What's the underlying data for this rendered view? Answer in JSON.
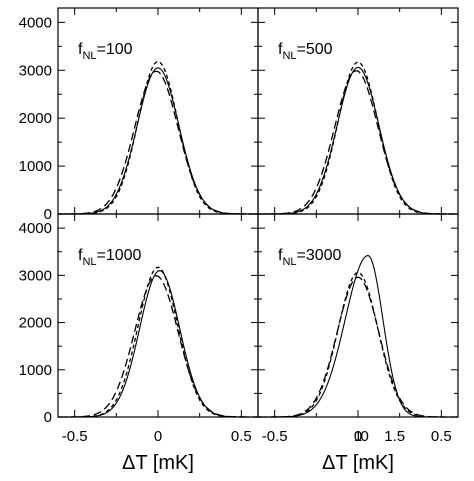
{
  "chart_data": [
    {
      "type": "line",
      "panel": "top-left",
      "label_main": "f",
      "label_sub": "NL",
      "label_value": "=100",
      "xlim": [
        -0.6,
        0.6
      ],
      "ylim": [
        0,
        4300
      ],
      "x_ticks": [
        -0.5,
        0,
        0.5
      ],
      "x_tick_labels": [
        "",
        "",
        ""
      ],
      "y_ticks": [
        0,
        1000,
        2000,
        3000,
        4000
      ],
      "y_tick_labels": [
        "0",
        "1000",
        "2000",
        "3000",
        "4000"
      ],
      "series": [
        {
          "style": "solid",
          "values": {
            "mean": 0.0,
            "sigma": 0.125,
            "peak": 3050
          }
        },
        {
          "style": "dashed",
          "values": {
            "mean": 0.0,
            "sigma": 0.12,
            "peak": 3180
          }
        },
        {
          "style": "long-dashed",
          "values": {
            "mean": -0.01,
            "sigma": 0.13,
            "peak": 2980
          }
        }
      ]
    },
    {
      "type": "line",
      "panel": "top-right",
      "label_main": "f",
      "label_sub": "NL",
      "label_value": "=500",
      "xlim": [
        -0.6,
        0.6
      ],
      "ylim": [
        0,
        4300
      ],
      "x_ticks": [
        -0.5,
        0,
        0.5
      ],
      "x_tick_labels": [
        "",
        "",
        ""
      ],
      "y_ticks": [
        0,
        1000,
        2000,
        3000,
        4000
      ],
      "y_tick_labels": [
        "",
        "",
        "",
        "",
        ""
      ],
      "series": [
        {
          "style": "solid",
          "values": {
            "mean": 0.0,
            "sigma": 0.125,
            "peak": 3060
          }
        },
        {
          "style": "dashed",
          "values": {
            "mean": 0.0,
            "sigma": 0.12,
            "peak": 3170
          }
        },
        {
          "style": "long-dashed",
          "values": {
            "mean": -0.01,
            "sigma": 0.13,
            "peak": 2990
          }
        }
      ]
    },
    {
      "type": "line",
      "panel": "bottom-left",
      "label_main": "f",
      "label_sub": "NL",
      "label_value": "=1000",
      "xlim": [
        -0.6,
        0.6
      ],
      "ylim": [
        0,
        4300
      ],
      "x_ticks": [
        -0.5,
        0,
        0.5
      ],
      "x_tick_labels": [
        "-0.5",
        "0",
        "0.5"
      ],
      "y_ticks": [
        0,
        1000,
        2000,
        3000,
        4000
      ],
      "y_tick_labels": [
        "0",
        "1000",
        "2000",
        "3000",
        "4000"
      ],
      "xlabel": "ΔT [mK]",
      "series": [
        {
          "style": "solid",
          "values": {
            "mean": 0.01,
            "sigma": 0.12,
            "peak": 3100
          }
        },
        {
          "style": "dashed",
          "values": {
            "mean": 0.0,
            "sigma": 0.12,
            "peak": 3170
          }
        },
        {
          "style": "long-dashed",
          "values": {
            "mean": -0.01,
            "sigma": 0.13,
            "peak": 2990
          }
        }
      ]
    },
    {
      "type": "line",
      "panel": "bottom-right",
      "label_main": "f",
      "label_sub": "NL",
      "label_value": "=3000",
      "xlim": [
        -0.6,
        0.6
      ],
      "ylim": [
        0,
        4300
      ],
      "x_ticks": [
        -0.5,
        0,
        0.5
      ],
      "x_tick_labels": [
        "-0.5",
        "0",
        "0.5"
      ],
      "extra_x_labels": [
        {
          "label": "1",
          "x": 0.0
        },
        {
          "label": "0",
          "x": 0.04
        },
        {
          "label": "1.5",
          "x": 0.22
        }
      ],
      "y_ticks": [
        0,
        1000,
        2000,
        3000,
        4000
      ],
      "y_tick_labels": [
        "",
        "",
        "",
        "",
        ""
      ],
      "xlabel": "ΔT [mK]",
      "series": [
        {
          "style": "solid",
          "values": {
            "mean": 0.06,
            "sigma": 0.105,
            "peak": 3420,
            "skew": 0.3
          }
        },
        {
          "style": "dashed",
          "values": {
            "mean": 0.0,
            "sigma": 0.12,
            "peak": 3060
          }
        },
        {
          "style": "long-dashed",
          "values": {
            "mean": 0.0,
            "sigma": 0.125,
            "peak": 2960
          }
        }
      ]
    }
  ]
}
